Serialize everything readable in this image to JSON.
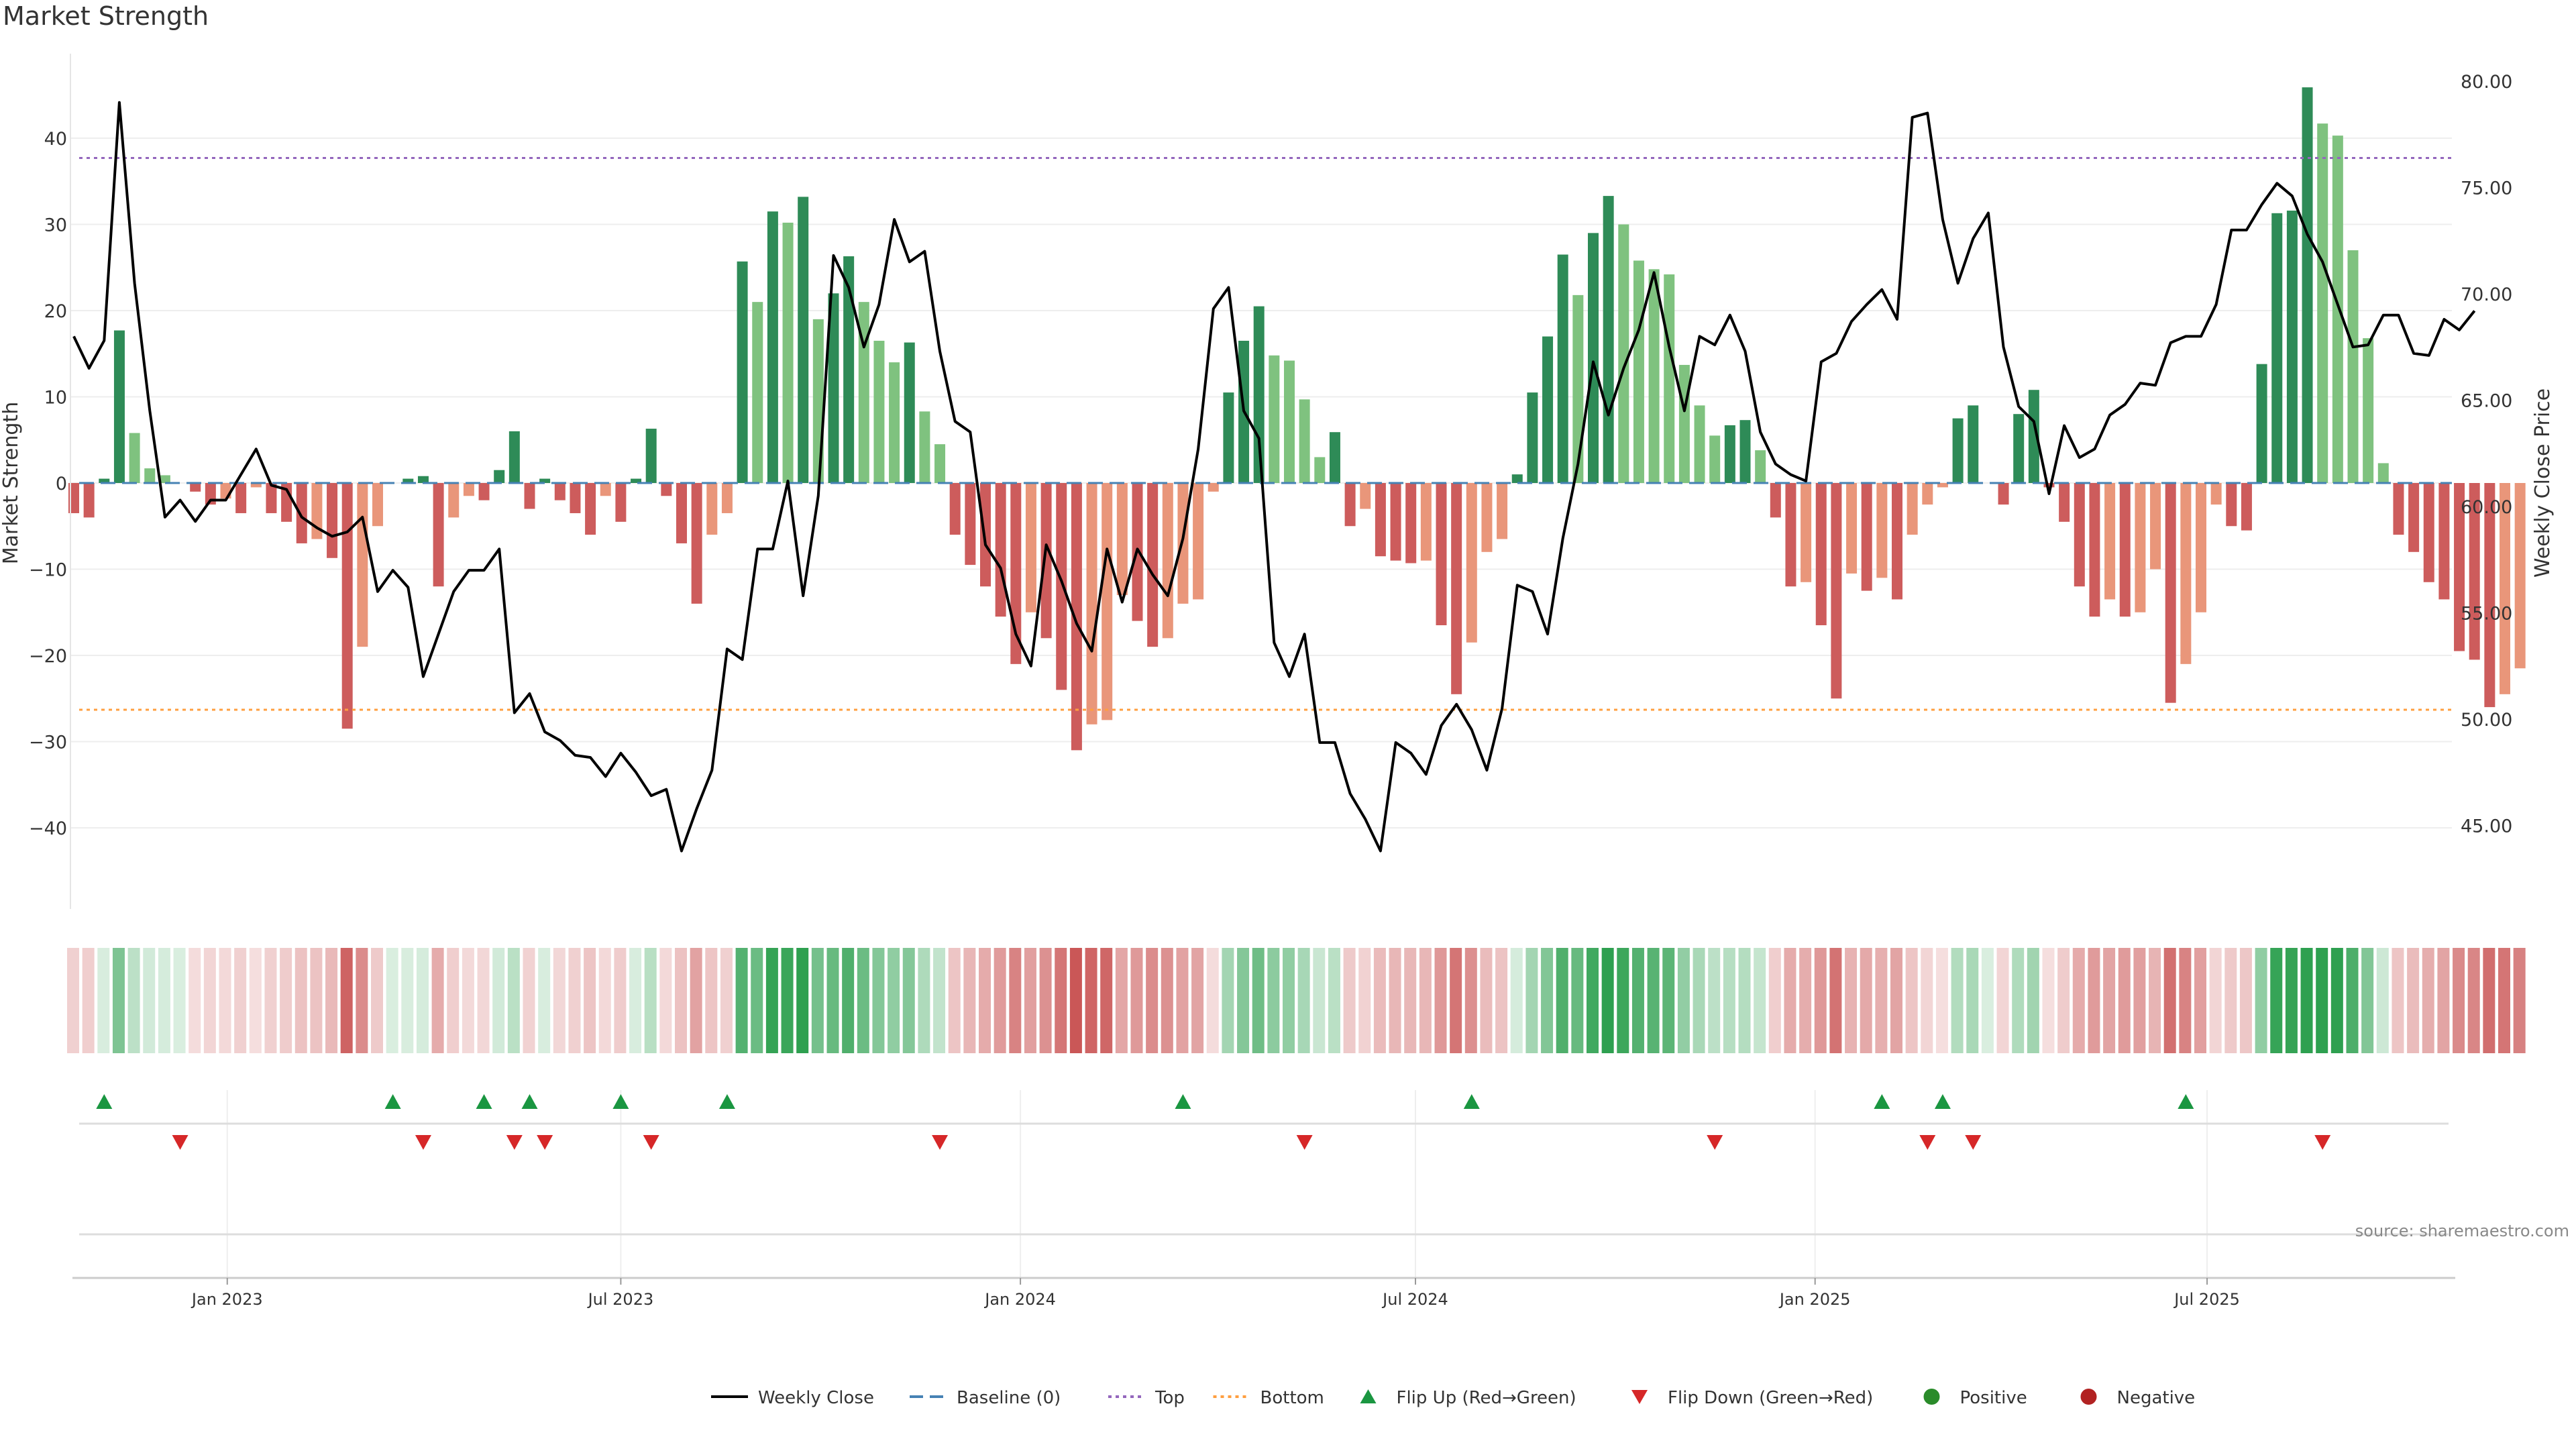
{
  "title": "Market Strength",
  "source": "source: sharemaestro.com",
  "colors": {
    "green_strong": "#2e8b57",
    "green_light": "#7fc27f",
    "red_strong": "#cd5c5c",
    "red_light": "#e9967a",
    "price_line": "#000000",
    "baseline": "#4682b4",
    "top_line": "#9467bd",
    "bottom_line": "#ff9f40",
    "flip_up": "#1a9641",
    "flip_down": "#d62728"
  },
  "legend": [
    {
      "label": "Weekly Close",
      "kind": "line"
    },
    {
      "label": "Baseline (0)",
      "kind": "dash"
    },
    {
      "label": "Top",
      "kind": "dot-top"
    },
    {
      "label": "Bottom",
      "kind": "dot-bottom"
    },
    {
      "label": "Flip Up (Red→Green)",
      "kind": "tri-up"
    },
    {
      "label": "Flip Down (Green→Red)",
      "kind": "tri-down"
    },
    {
      "label": "Positive",
      "kind": "circle-green"
    },
    {
      "label": "Negative",
      "kind": "circle-red"
    }
  ],
  "chart_data": {
    "type": "bar",
    "xlabel": "",
    "ylabel": "Market Strength",
    "y2label": "Weekly Close Price",
    "ylim": [
      -49,
      50
    ],
    "y2lim": [
      41.0,
      81.0
    ],
    "yticks": [
      -40,
      -30,
      -20,
      -10,
      0,
      10,
      20,
      30,
      40
    ],
    "y2ticks": [
      "45.00",
      "50.00",
      "55.00",
      "60.00",
      "65.00",
      "70.00",
      "75.00",
      "80.00"
    ],
    "xticks": [
      "Jan 2023",
      "Jul 2023",
      "Jan 2024",
      "Jul 2024",
      "Jan 2025",
      "Jul 2025"
    ],
    "xtick_weeks": [
      10.1,
      36.0,
      62.3,
      88.3,
      114.6,
      140.4
    ],
    "top_level": 37.7,
    "bottom_level": -26.3,
    "strength": [
      -3.5,
      -4,
      0.5,
      17.7,
      5.8,
      1.7,
      0.9,
      0,
      -1,
      -2.5,
      -1.8,
      -3.5,
      -0.5,
      -3.5,
      -4.5,
      -7,
      -6.5,
      -8.7,
      -28.5,
      -19,
      -5,
      0,
      0.5,
      0.8,
      -12,
      -4,
      -1.5,
      -2,
      1.5,
      6,
      -3,
      0.5,
      -2,
      -3.5,
      -6,
      -1.5,
      -4.5,
      0.5,
      6.3,
      -1.5,
      -7,
      -14,
      -6,
      -3.5,
      25.7,
      21,
      31.5,
      30.2,
      33.2,
      19,
      22,
      26.3,
      21,
      16.5,
      14,
      16.3,
      8.3,
      4.5,
      -6,
      -9.5,
      -12,
      -15.5,
      -21,
      -15,
      -18,
      -24,
      -31,
      -28,
      -27.5,
      -13,
      -16,
      -19,
      -18,
      -14,
      -13.5,
      -1,
      10.5,
      16.5,
      20.5,
      14.8,
      14.2,
      9.7,
      3,
      5.9,
      -5,
      -3,
      -8.5,
      -9,
      -9.3,
      -9,
      -16.5,
      -24.5,
      -18.5,
      -8,
      -6.5,
      1,
      10.5,
      17,
      26.5,
      21.8,
      29,
      33.3,
      30,
      25.8,
      24.8,
      24.2,
      13.7,
      9,
      5.5,
      6.7,
      7.3,
      3.8,
      -4,
      -12,
      -11.5,
      -16.5,
      -25,
      -10.5,
      -12.5,
      -11,
      -13.5,
      -6,
      -2.5,
      -0.5,
      7.5,
      9,
      0,
      -2.5,
      8,
      10.8,
      -0.5,
      -4.5,
      -12,
      -15.5,
      -13.5,
      -15.5,
      -15,
      -10,
      -25.5,
      -21,
      -15,
      -2.5,
      -5,
      -5.5,
      13.8,
      31.3,
      31.6,
      45.9,
      41.7,
      40.3,
      27,
      16.8,
      2.3,
      -6,
      -8,
      -11.5,
      -13.5,
      -19.5,
      -20.5,
      -26,
      -24.5,
      -21.5
    ],
    "weekly_close": [
      68,
      66.5,
      67.8,
      79,
      70.5,
      64.5,
      59.5,
      60.3,
      59.3,
      60.3,
      60.3,
      61.5,
      62.7,
      61,
      60.8,
      59.5,
      59,
      58.6,
      58.8,
      59.5,
      56,
      57,
      56.2,
      52,
      54,
      56,
      57,
      57,
      58,
      50.3,
      51.2,
      49.4,
      49,
      48.3,
      48.2,
      47.3,
      48.4,
      47.5,
      46.4,
      46.7,
      43.8,
      45.8,
      47.6,
      53.3,
      52.8,
      58,
      58,
      61.2,
      55.8,
      60.5,
      71.8,
      70.3,
      67.5,
      69.5,
      73.5,
      71.5,
      72,
      67.3,
      64,
      63.5,
      58.2,
      57.1,
      54,
      52.5,
      58.2,
      56.5,
      54.5,
      53.2,
      58,
      55.5,
      58,
      56.8,
      55.8,
      58.5,
      62.7,
      69.3,
      70.3,
      64.5,
      63.2,
      53.6,
      52,
      54,
      48.9,
      48.9,
      46.5,
      45.3,
      43.8,
      48.9,
      48.4,
      47.4,
      49.7,
      50.7,
      49.5,
      47.6,
      50.5,
      56.3,
      56,
      54,
      58.5,
      62,
      66.8,
      64.3,
      66.5,
      68.3,
      71,
      67.5,
      64.5,
      68,
      67.6,
      69,
      67.3,
      63.5,
      62,
      61.5,
      61.2,
      66.8,
      67.2,
      68.7,
      69.5,
      70.2,
      68.8,
      78.3,
      78.5,
      73.5,
      70.5,
      72.6,
      73.8,
      67.5,
      64.7,
      64,
      60.6,
      63.8,
      62.3,
      62.7,
      64.3,
      64.8,
      65.8,
      65.7,
      67.7,
      68,
      68,
      69.5,
      73,
      73,
      74.2,
      75.2,
      74.6,
      72.8,
      71.5,
      69.5,
      67.5,
      67.6,
      69,
      69,
      67.2,
      67.1,
      68.8,
      68.3,
      69.2
    ],
    "flip_up_weeks": [
      2,
      21,
      27,
      30,
      36,
      43,
      73,
      92,
      119,
      123,
      139
    ],
    "flip_down_weeks": [
      7,
      23,
      29,
      31,
      38,
      57,
      81,
      108,
      122,
      125,
      148
    ]
  }
}
